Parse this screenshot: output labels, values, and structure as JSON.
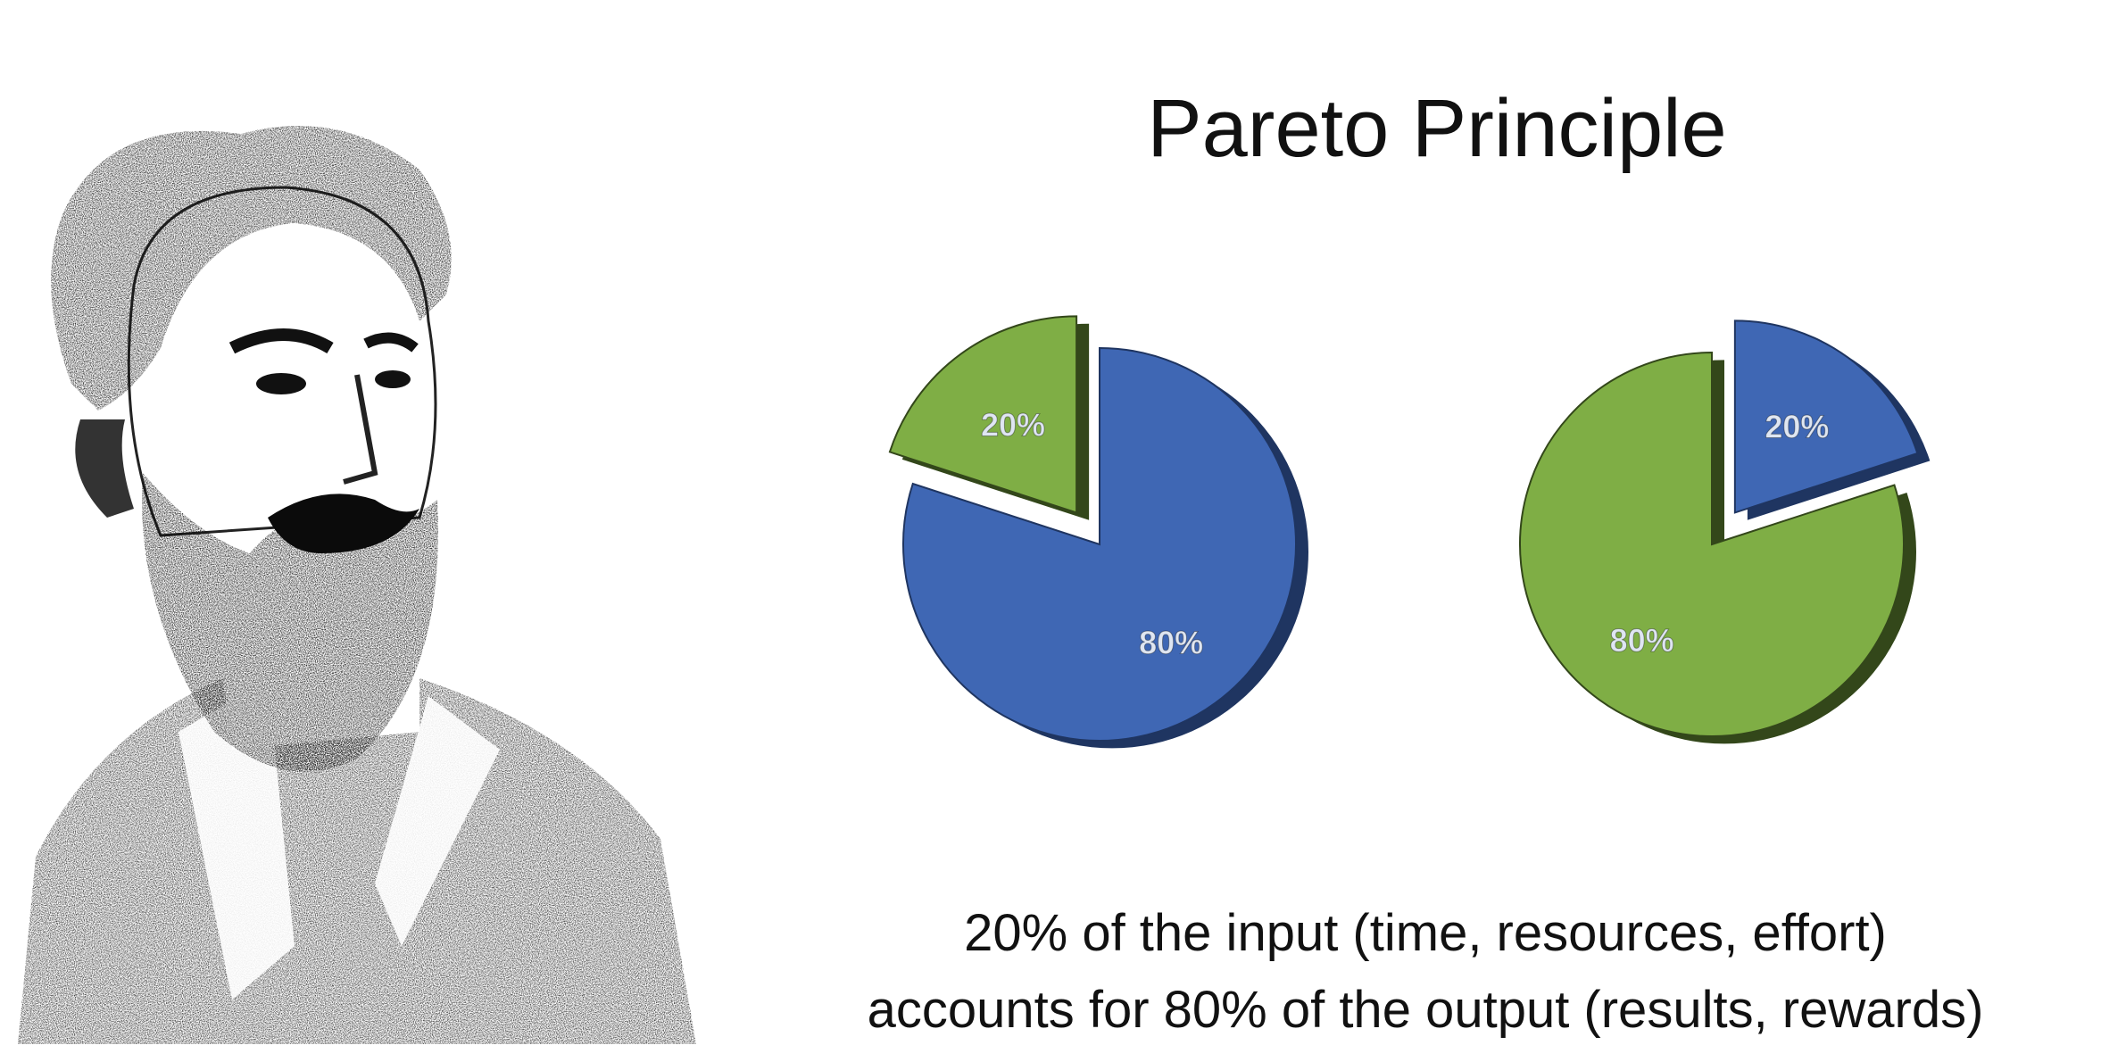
{
  "title": "Pareto Principle",
  "caption": {
    "line1": "20% of the input (time, resources, effort)",
    "line2": "accounts for 80% of the output (results, rewards)"
  },
  "portrait": {
    "subject": "portrait-illustration"
  },
  "colors": {
    "blue": "#3f67b4",
    "blue_dark": "#1f3561",
    "green": "#7fae45",
    "green_dark": "#33471a",
    "label": "#dfe6f2"
  },
  "chart_data": [
    {
      "type": "pie",
      "slices": [
        {
          "label": "20%",
          "value": 20,
          "color": "#7fae45",
          "exploded": true
        },
        {
          "label": "80%",
          "value": 80,
          "color": "#3f67b4",
          "exploded": false
        }
      ]
    },
    {
      "type": "pie",
      "slices": [
        {
          "label": "20%",
          "value": 20,
          "color": "#3f67b4",
          "exploded": true
        },
        {
          "label": "80%",
          "value": 80,
          "color": "#7fae45",
          "exploded": false
        }
      ]
    }
  ]
}
